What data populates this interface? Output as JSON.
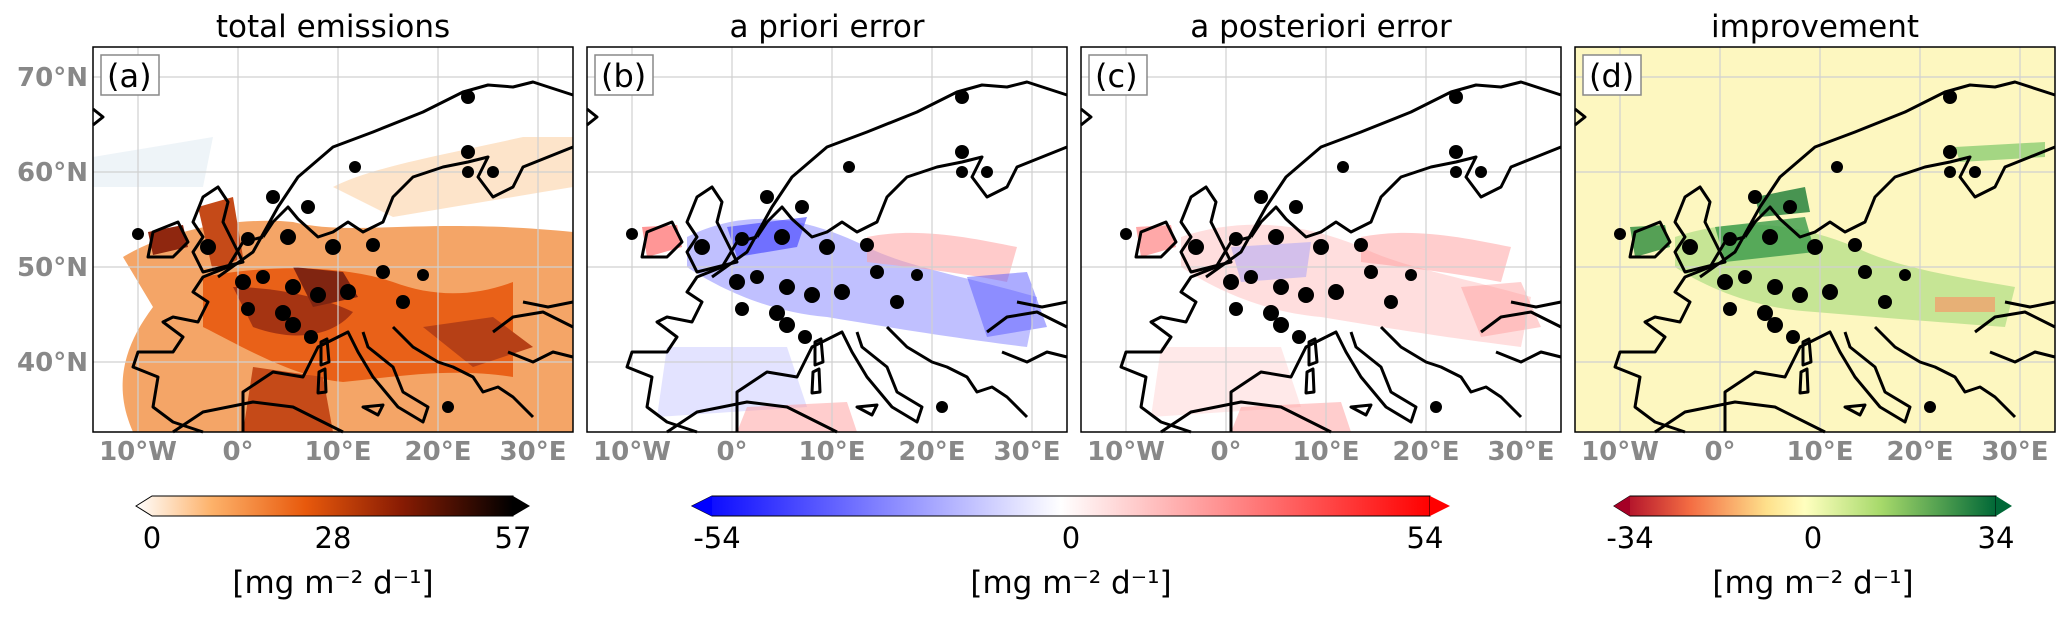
{
  "panels": [
    {
      "title": "total emissions",
      "label": "(a)",
      "kind": "total"
    },
    {
      "title": "a priori error",
      "label": "(b)",
      "kind": "prior"
    },
    {
      "title": "a posteriori error",
      "label": "(c)",
      "kind": "post"
    },
    {
      "title": "improvement",
      "label": "(d)",
      "kind": "improve"
    }
  ],
  "lat_ticks": [
    "70°N",
    "60°N",
    "50°N",
    "40°N"
  ],
  "lon_ticks": [
    "10°W",
    "0°",
    "10°E",
    "20°E",
    "30°E"
  ],
  "colorbars": [
    {
      "min": "0",
      "mid": "28",
      "max": "57",
      "unit": "[mg m⁻² d⁻¹]",
      "cmap": "white-orange-black"
    },
    {
      "min": "-54",
      "mid": "0",
      "max": "54",
      "unit": "[mg m⁻² d⁻¹]",
      "cmap": "blue-white-red"
    },
    {
      "min": "-34",
      "mid": "0",
      "max": "34",
      "unit": "[mg m⁻² d⁻¹]",
      "cmap": "red-yellow-green"
    }
  ],
  "colors": {
    "orange": "#e8590c",
    "darkred": "#7a1a05",
    "blue": "#1010ff",
    "red": "#ff1010",
    "green": "#0a6b2b",
    "yellow": "#fdf7c0"
  }
}
